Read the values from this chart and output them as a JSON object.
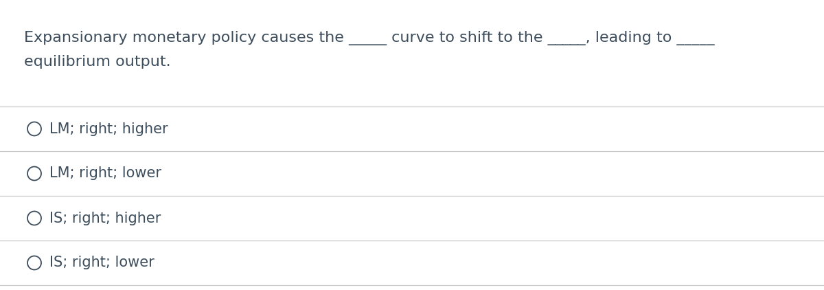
{
  "question_line1": "Expansionary monetary policy causes the _____ curve to shift to the _____, leading to _____",
  "question_line2": "equilibrium output.",
  "options": [
    "LM; right; higher",
    "LM; right; lower",
    "IS; right; higher",
    "IS; right; lower"
  ],
  "text_color": "#3d4d5c",
  "bg_color": "#ffffff",
  "line_color": "#c8c8c8",
  "font_size": 16,
  "option_font_size": 15,
  "fig_width": 12.0,
  "fig_height": 4.22
}
